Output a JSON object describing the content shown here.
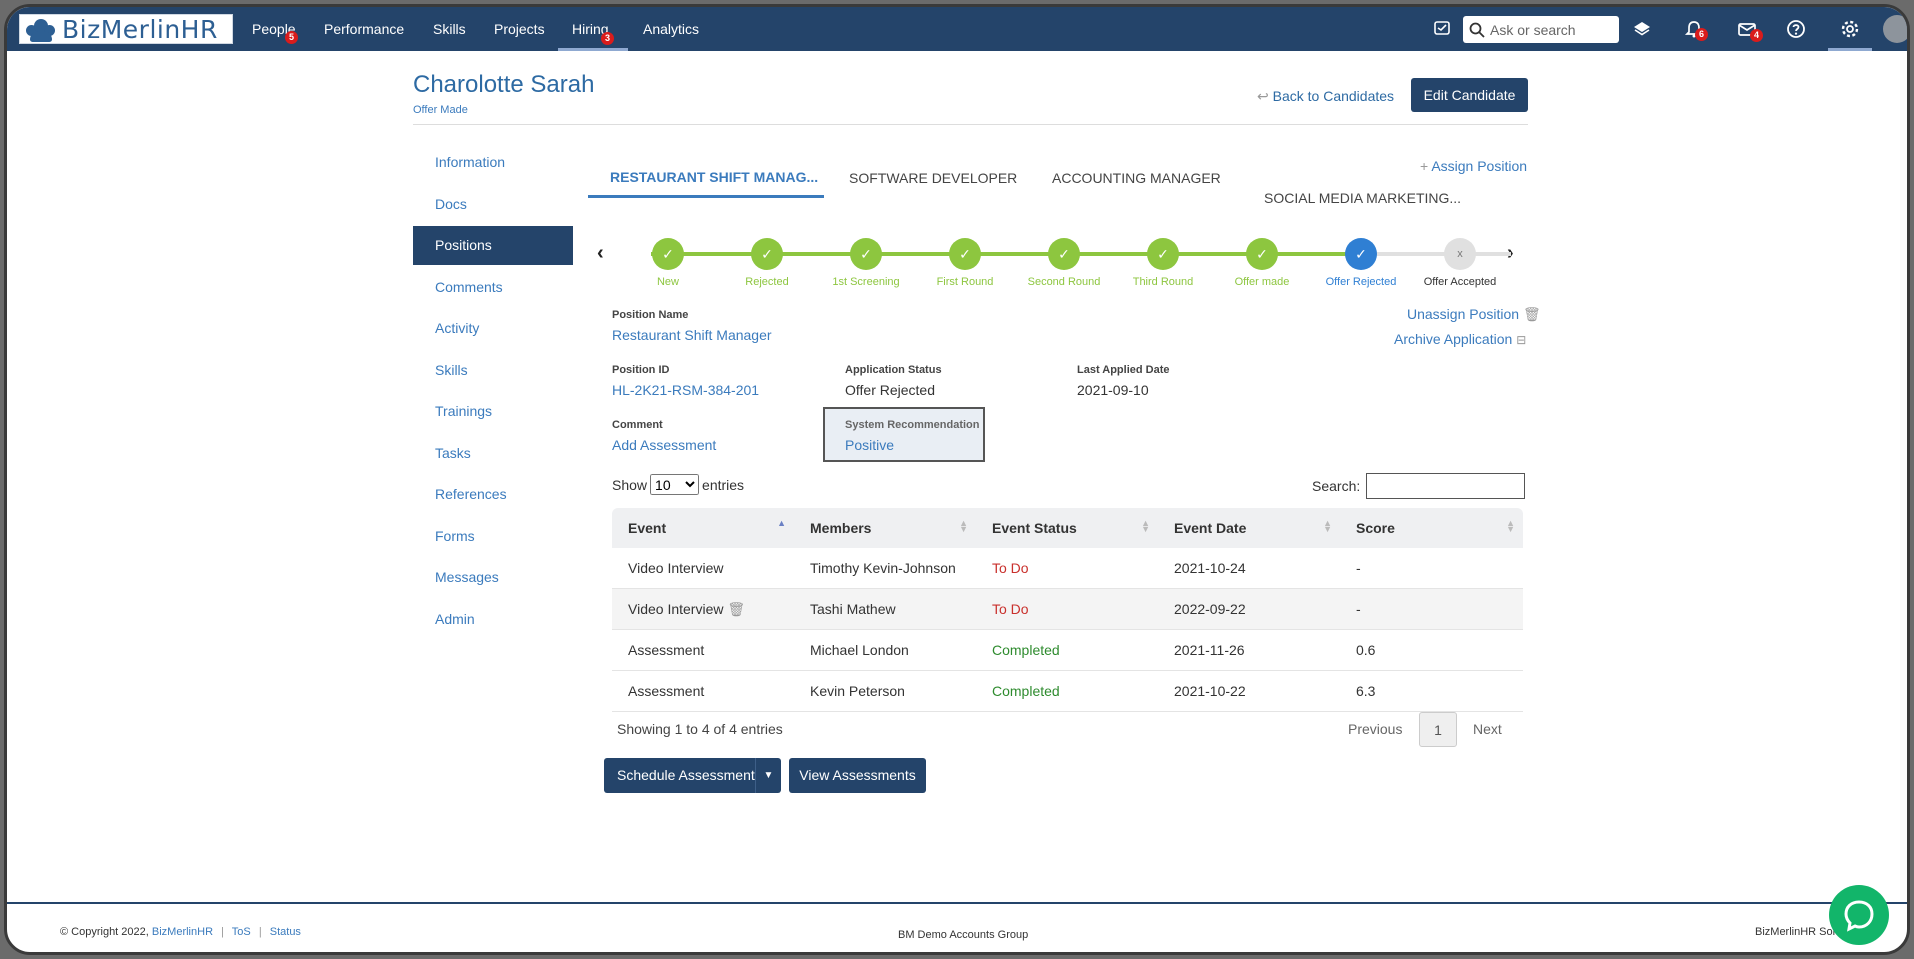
{
  "brand": {
    "logo_text": "BizMerlinHR"
  },
  "nav": {
    "items": [
      {
        "label": "People",
        "badge": "5"
      },
      {
        "label": "Performance"
      },
      {
        "label": "Skills"
      },
      {
        "label": "Projects"
      },
      {
        "label": "Hiring",
        "badge": "3"
      },
      {
        "label": "Analytics"
      }
    ],
    "search_placeholder": "Ask or search",
    "notifications_badge": "6",
    "messages_badge": "4"
  },
  "candidate": {
    "name": "Charolotte Sarah",
    "status": "Offer Made",
    "back_label": "Back to Candidates",
    "edit_label": "Edit Candidate"
  },
  "sidebar": {
    "items": [
      {
        "label": "Information"
      },
      {
        "label": "Docs"
      },
      {
        "label": "Positions"
      },
      {
        "label": "Comments"
      },
      {
        "label": "Activity"
      },
      {
        "label": "Skills"
      },
      {
        "label": "Trainings"
      },
      {
        "label": "Tasks"
      },
      {
        "label": "References"
      },
      {
        "label": "Forms"
      },
      {
        "label": "Messages"
      },
      {
        "label": "Admin"
      }
    ]
  },
  "tabs": [
    {
      "label": "RESTAURANT SHIFT MANAG..."
    },
    {
      "label": "SOFTWARE DEVELOPER"
    },
    {
      "label": "ACCOUNTING MANAGER"
    },
    {
      "label": "SOCIAL MEDIA MARKETING..."
    }
  ],
  "assign_position": "Assign Position",
  "pipeline": {
    "stages": [
      {
        "label": "New",
        "mark": "✓"
      },
      {
        "label": "Rejected",
        "mark": "✓"
      },
      {
        "label": "1st Screening",
        "mark": "✓"
      },
      {
        "label": "First Round",
        "mark": "✓"
      },
      {
        "label": "Second Round",
        "mark": "✓"
      },
      {
        "label": "Third Round",
        "mark": "✓"
      },
      {
        "label": "Offer made",
        "mark": "✓"
      },
      {
        "label": "Offer Rejected",
        "mark": "✓"
      },
      {
        "label": "Offer Accepted",
        "mark": "x"
      }
    ],
    "colors": {
      "done": "#8dc63f",
      "current": "#2f7fd3",
      "pending": "#e0e0e0"
    }
  },
  "position": {
    "name_label": "Position Name",
    "name_value": "Restaurant Shift Manager",
    "unassign": "Unassign Position",
    "archive": "Archive Application",
    "id_label": "Position ID",
    "id_value": "HL-2K21-RSM-384-201",
    "app_status_label": "Application Status",
    "app_status_value": "Offer Rejected",
    "last_applied_label": "Last Applied Date",
    "last_applied_value": "2021-09-10",
    "comment_label": "Comment",
    "comment_value": "Add Assessment",
    "sysrec_label": "System Recommendation",
    "sysrec_value": "Positive"
  },
  "table": {
    "show_label": "Show",
    "entries_label": "entries",
    "page_size": "10",
    "search_label": "Search:",
    "columns": [
      "Event",
      "Members",
      "Event Status",
      "Event Date",
      "Score"
    ],
    "rows": [
      {
        "event": "Video Interview",
        "member": "Timothy Kevin-Johnson",
        "status": "To Do",
        "date": "2021-10-24",
        "score": "-"
      },
      {
        "event": "Video Interview",
        "member": "Tashi Mathew",
        "status": "To Do",
        "date": "2022-09-22",
        "score": "-"
      },
      {
        "event": "Assessment",
        "member": "Michael London",
        "status": "Completed",
        "date": "2021-11-26",
        "score": "0.6"
      },
      {
        "event": "Assessment",
        "member": "Kevin Peterson",
        "status": "Completed",
        "date": "2021-10-22",
        "score": "6.3"
      }
    ],
    "info": "Showing 1 to 4 of 4 entries",
    "previous": "Previous",
    "page": "1",
    "next": "Next"
  },
  "actions": {
    "schedule": "Schedule Assessment",
    "view": "View Assessments"
  },
  "footer": {
    "copyright": "© Copyright 2022,",
    "brand_link": "BizMerlinHR",
    "tos": "ToS",
    "status": "Status",
    "center": "BM Demo Accounts Group",
    "right": "BizMerlinHR Solu"
  }
}
